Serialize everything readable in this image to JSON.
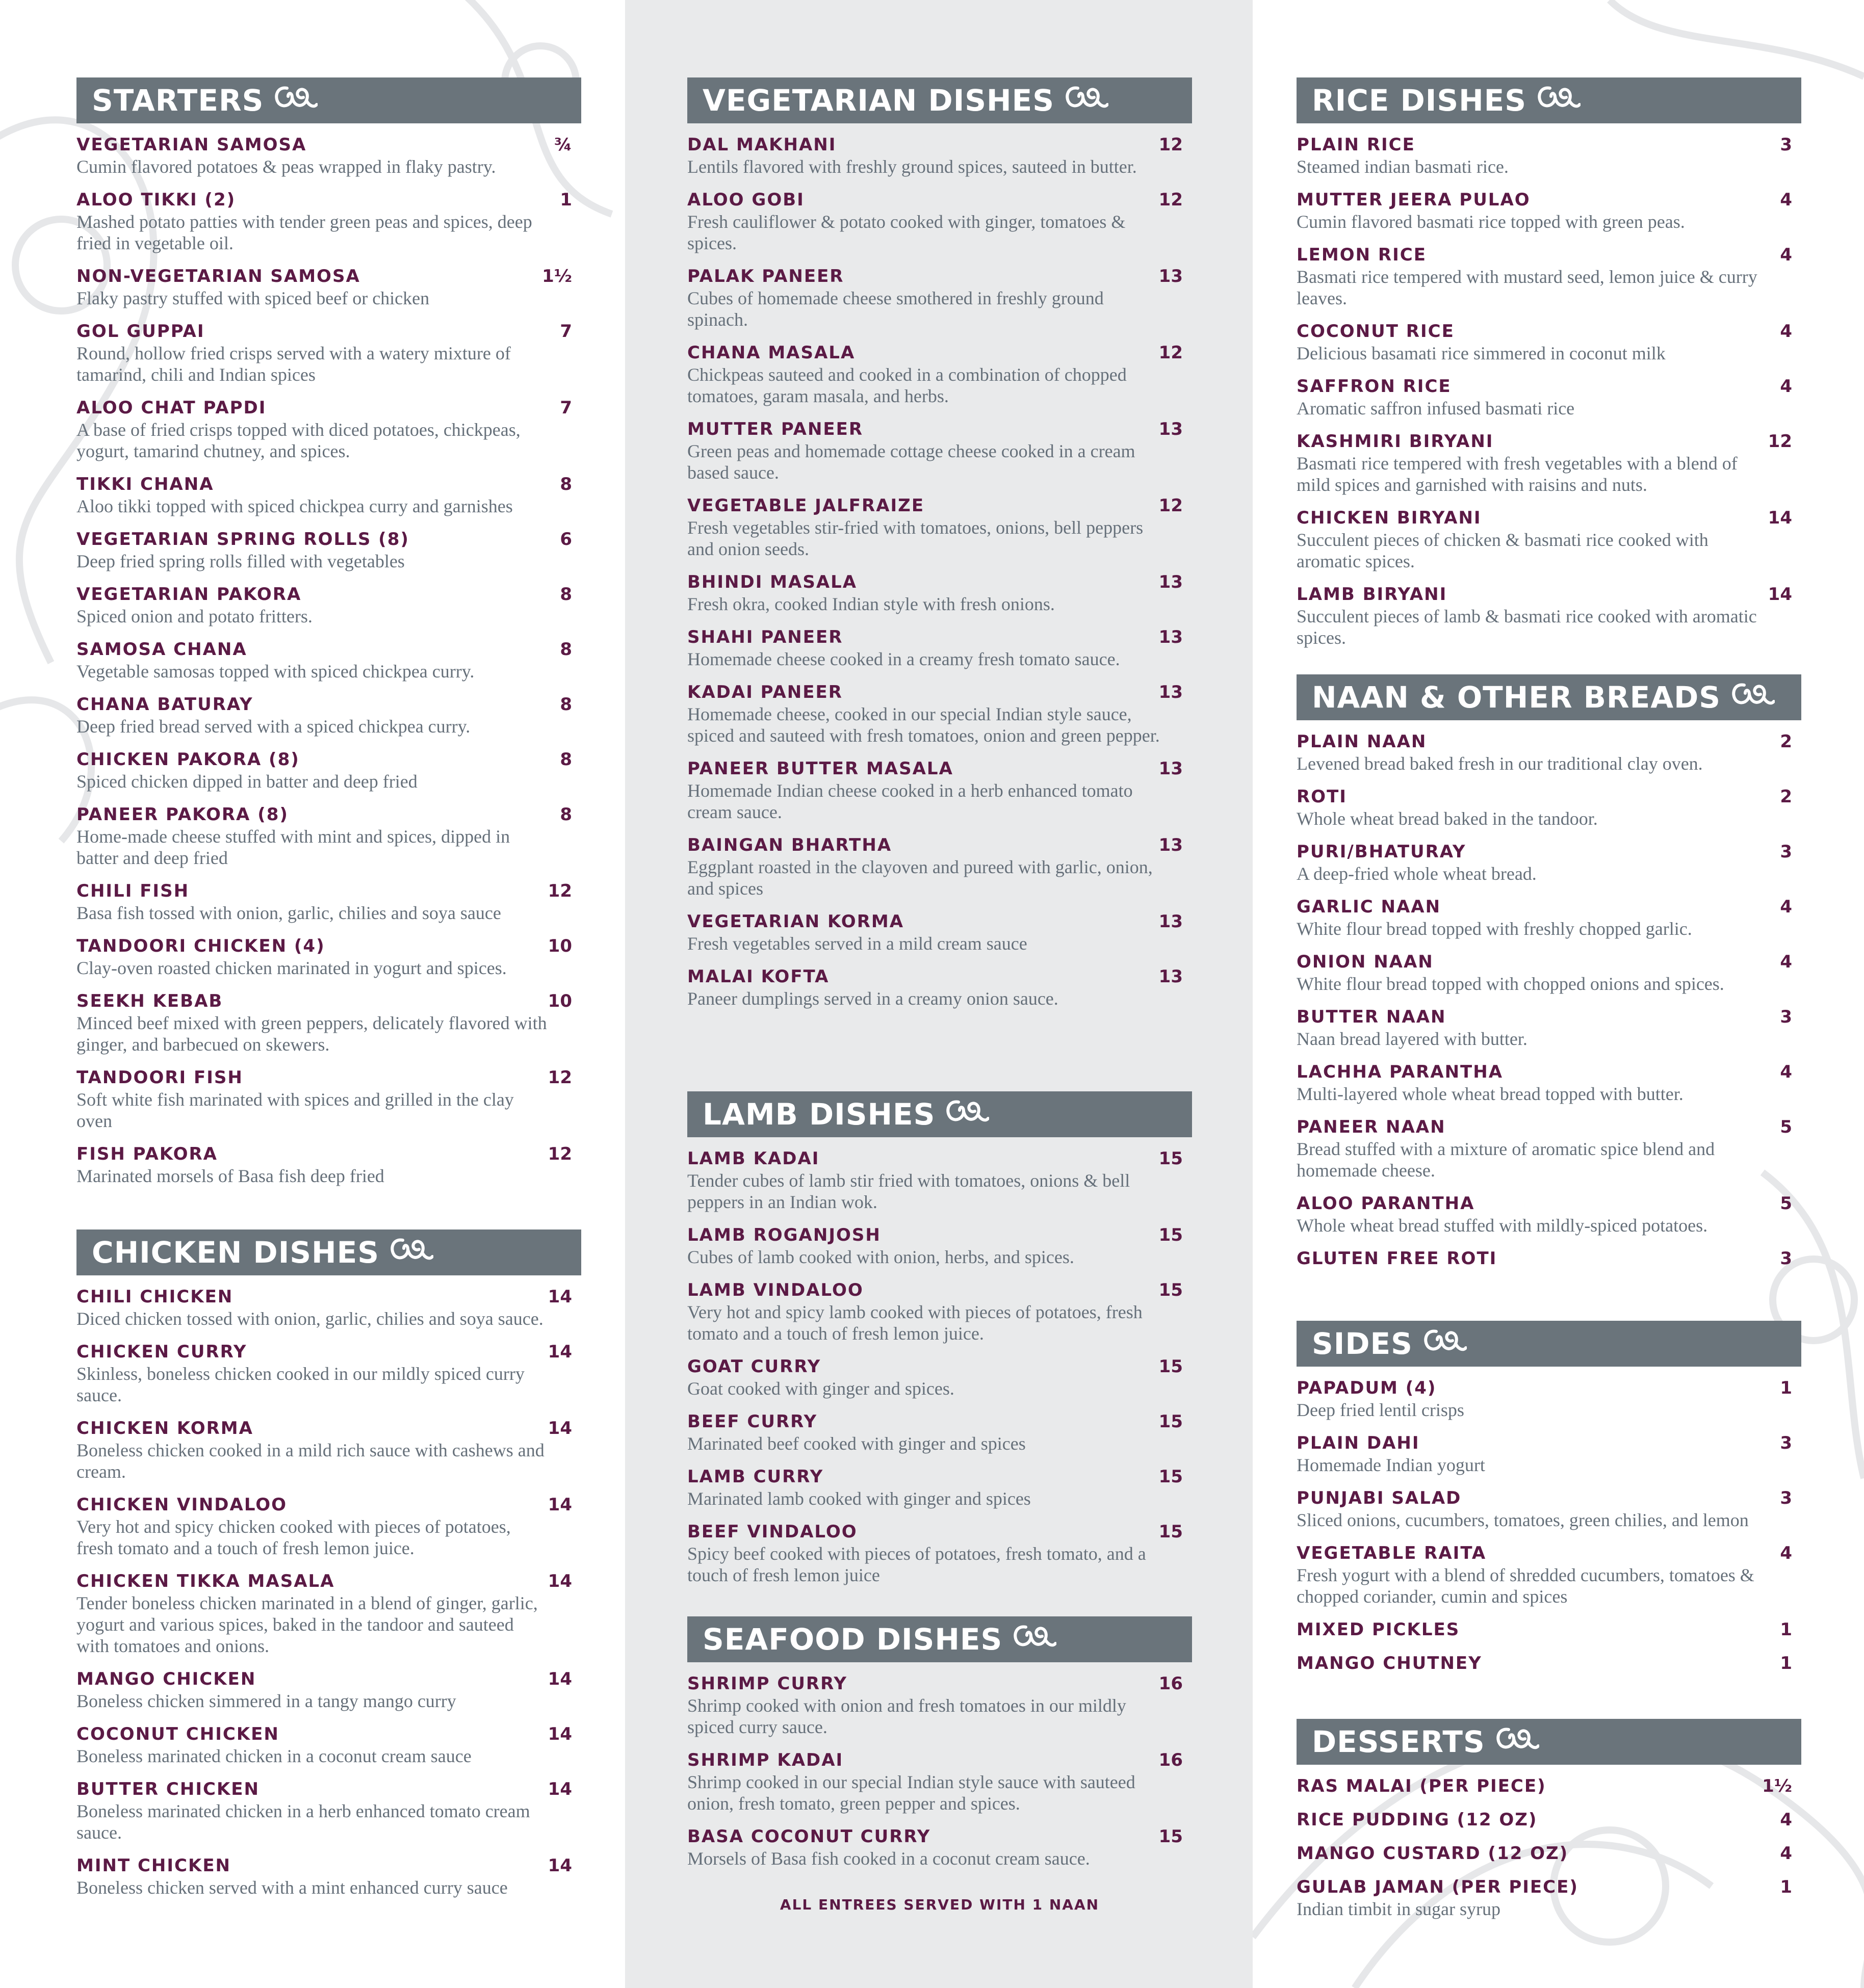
{
  "colors": {
    "header_bg": "#6a747b",
    "item_name": "#5b1a45",
    "description": "#66707a",
    "middle_bg": "#e9eaeb"
  },
  "header_icon": "paisley-flourish-icon",
  "columns": [
    [
      {
        "title": "STARTERS",
        "items": [
          {
            "name": "VEGETARIAN SAMOSA",
            "price": "¾",
            "desc": "Cumin flavored potatoes & peas wrapped in flaky pastry."
          },
          {
            "name": "ALOO TIKKI (2)",
            "price": "1",
            "desc": "Mashed potato patties with tender green peas and spices, deep fried in vegetable oil."
          },
          {
            "name": "NON-VEGETARIAN SAMOSA",
            "price": "1½",
            "desc": "Flaky pastry stuffed with spiced beef or chicken"
          },
          {
            "name": "GOL GUPPAI",
            "price": "7",
            "desc": "Round, hollow fried crisps served with a watery mixture of tamarind, chili and Indian spices"
          },
          {
            "name": "ALOO CHAT PAPDI",
            "price": "7",
            "desc": "A base of fried crisps topped with diced potatoes, chickpeas, yogurt, tamarind chutney, and spices."
          },
          {
            "name": "TIKKI CHANA",
            "price": "8",
            "desc": "Aloo tikki topped with spiced chickpea curry and garnishes"
          },
          {
            "name": "VEGETARIAN SPRING ROLLS (8)",
            "price": "6",
            "desc": "Deep fried spring rolls filled with vegetables"
          },
          {
            "name": "VEGETARIAN PAKORA",
            "price": "8",
            "desc": "Spiced onion and potato fritters."
          },
          {
            "name": "SAMOSA CHANA",
            "price": "8",
            "desc": "Vegetable samosas topped with spiced chickpea curry."
          },
          {
            "name": "CHANA BATURAY",
            "price": "8",
            "desc": "Deep fried bread served with a spiced chickpea curry."
          },
          {
            "name": "CHICKEN PAKORA (8)",
            "price": "8",
            "desc": "Spiced chicken dipped in batter and deep fried"
          },
          {
            "name": "PANEER PAKORA (8)",
            "price": "8",
            "desc": "Home-made cheese stuffed with mint and spices, dipped in batter and deep fried"
          },
          {
            "name": "CHILI FISH",
            "price": "12",
            "desc": "Basa fish tossed with onion, garlic, chilies and soya sauce"
          },
          {
            "name": "TANDOORI CHICKEN (4)",
            "price": "10",
            "desc": "Clay-oven roasted chicken marinated in yogurt and spices."
          },
          {
            "name": "SEEKH KEBAB",
            "price": "10",
            "desc": "Minced beef mixed with green peppers, delicately flavored with ginger, and barbecued on skewers."
          },
          {
            "name": "TANDOORI FISH",
            "price": "12",
            "desc": "Soft white fish marinated with spices and grilled in the clay oven"
          },
          {
            "name": "FISH PAKORA",
            "price": "12",
            "desc": "Marinated morsels of Basa fish deep fried"
          }
        ]
      },
      {
        "title": "CHICKEN DISHES",
        "items": [
          {
            "name": "CHILI CHICKEN",
            "price": "14",
            "desc": "Diced chicken tossed with onion, garlic, chilies and soya sauce."
          },
          {
            "name": "CHICKEN CURRY",
            "price": "14",
            "desc": "Skinless, boneless chicken cooked in our mildly spiced curry sauce."
          },
          {
            "name": "CHICKEN KORMA",
            "price": "14",
            "desc": "Boneless chicken cooked in a mild rich sauce with cashews and cream."
          },
          {
            "name": "CHICKEN VINDALOO",
            "price": "14",
            "desc": "Very hot and spicy chicken cooked with pieces of potatoes, fresh tomato and a touch of fresh lemon juice."
          },
          {
            "name": "CHICKEN TIKKA MASALA",
            "price": "14",
            "desc": "Tender boneless chicken marinated in a blend of ginger, garlic, yogurt and various spices, baked in the tandoor and sauteed with tomatoes and onions."
          },
          {
            "name": "MANGO CHICKEN",
            "price": "14",
            "desc": "Boneless chicken simmered in a tangy mango curry"
          },
          {
            "name": "COCONUT CHICKEN",
            "price": "14",
            "desc": "Boneless marinated chicken in a coconut cream sauce"
          },
          {
            "name": "BUTTER CHICKEN",
            "price": "14",
            "desc": "Boneless marinated chicken in a herb enhanced tomato cream sauce."
          },
          {
            "name": "MINT CHICKEN",
            "price": "14",
            "desc": "Boneless chicken served with a mint enhanced curry sauce"
          }
        ]
      }
    ],
    [
      {
        "title": "VEGETARIAN DISHES",
        "items": [
          {
            "name": "DAL MAKHANI",
            "price": "12",
            "desc": "Lentils flavored with freshly ground spices, sauteed in butter."
          },
          {
            "name": "ALOO GOBI",
            "price": "12",
            "desc": "Fresh cauliflower & potato cooked with ginger, tomatoes & spices."
          },
          {
            "name": "PALAK PANEER",
            "price": "13",
            "desc": "Cubes of homemade cheese smothered in freshly ground spinach."
          },
          {
            "name": "CHANA MASALA",
            "price": "12",
            "desc": "Chickpeas sauteed and cooked in a combination of chopped tomatoes, garam masala, and herbs."
          },
          {
            "name": "MUTTER PANEER",
            "price": "13",
            "desc": "Green peas and homemade cottage cheese cooked in a cream based sauce."
          },
          {
            "name": "VEGETABLE JALFRAIZE",
            "price": "12",
            "desc": "Fresh vegetables stir-fried with tomatoes, onions, bell peppers and onion seeds."
          },
          {
            "name": "BHINDI MASALA",
            "price": "13",
            "desc": "Fresh okra, cooked Indian style with fresh onions."
          },
          {
            "name": "SHAHI PANEER",
            "price": "13",
            "desc": "Homemade cheese cooked in a creamy fresh tomato sauce."
          },
          {
            "name": "KADAI PANEER",
            "price": "13",
            "desc": "Homemade cheese, cooked in our special Indian style sauce, spiced and sauteed with fresh tomatoes, onion and green pepper."
          },
          {
            "name": "PANEER BUTTER MASALA",
            "price": "13",
            "desc": "Homemade Indian cheese cooked in a herb enhanced tomato cream sauce."
          },
          {
            "name": "BAINGAN BHARTHA",
            "price": "13",
            "desc": "Eggplant roasted in the clayoven and pureed with garlic, onion, and spices"
          },
          {
            "name": "VEGETARIAN KORMA",
            "price": "13",
            "desc": "Fresh vegetables served in a mild cream sauce"
          },
          {
            "name": "MALAI KOFTA",
            "price": "13",
            "desc": "Paneer dumplings served in a creamy onion sauce."
          }
        ]
      },
      {
        "title": "LAMB DISHES",
        "items": [
          {
            "name": "LAMB KADAI",
            "price": "15",
            "desc": "Tender cubes of lamb stir fried with tomatoes, onions & bell peppers in an Indian wok."
          },
          {
            "name": "LAMB ROGANJOSH",
            "price": "15",
            "desc": "Cubes of lamb cooked with onion, herbs, and spices."
          },
          {
            "name": "LAMB VINDALOO",
            "price": "15",
            "desc": "Very hot and spicy lamb cooked with pieces of potatoes, fresh tomato and a touch of fresh lemon juice."
          },
          {
            "name": "GOAT CURRY",
            "price": "15",
            "desc": "Goat cooked with ginger and spices."
          },
          {
            "name": "BEEF CURRY",
            "price": "15",
            "desc": "Marinated beef cooked with ginger and spices"
          },
          {
            "name": "LAMB CURRY",
            "price": "15",
            "desc": "Marinated lamb cooked with ginger and spices"
          },
          {
            "name": "BEEF VINDALOO",
            "price": "15",
            "desc": "Spicy beef cooked with pieces of potatoes, fresh tomato, and a touch of fresh lemon juice"
          }
        ]
      },
      {
        "title": "SEAFOOD DISHES",
        "items": [
          {
            "name": "SHRIMP CURRY",
            "price": "16",
            "desc": "Shrimp cooked with onion and fresh tomatoes in our mildly spiced curry sauce."
          },
          {
            "name": "SHRIMP KADAI",
            "price": "16",
            "desc": "Shrimp cooked in our special Indian style sauce with sauteed onion, fresh tomato, green pepper and spices."
          },
          {
            "name": "BASA COCONUT CURRY",
            "price": "15",
            "desc": "Morsels of Basa fish cooked in a coconut cream sauce."
          }
        ]
      }
    ],
    [
      {
        "title": "RICE DISHES",
        "items": [
          {
            "name": "PLAIN RICE",
            "price": "3",
            "desc": "Steamed indian basmati rice."
          },
          {
            "name": "MUTTER JEERA PULAO",
            "price": "4",
            "desc": "Cumin flavored basmati rice topped with green peas."
          },
          {
            "name": "LEMON RICE",
            "price": "4",
            "desc": "Basmati rice tempered with mustard seed, lemon juice & curry leaves."
          },
          {
            "name": "COCONUT RICE",
            "price": "4",
            "desc": "Delicious basamati rice simmered in coconut milk"
          },
          {
            "name": "SAFFRON RICE",
            "price": "4",
            "desc": "Aromatic saffron infused basmati rice"
          },
          {
            "name": "KASHMIRI BIRYANI",
            "price": "12",
            "desc": "Basmati rice tempered with fresh vegetables with a blend of mild spices and garnished with raisins and nuts."
          },
          {
            "name": "CHICKEN BIRYANI",
            "price": "14",
            "desc": "Succulent pieces of chicken & basmati rice cooked with aromatic spices."
          },
          {
            "name": "LAMB BIRYANI",
            "price": "14",
            "desc": "Succulent pieces of lamb & basmati rice cooked with aromatic spices."
          }
        ]
      },
      {
        "title": "NAAN & OTHER BREADS",
        "items": [
          {
            "name": "PLAIN NAAN",
            "price": "2",
            "desc": "Levened bread baked fresh in our traditional clay oven."
          },
          {
            "name": "ROTI",
            "price": "2",
            "desc": "Whole wheat bread baked in the tandoor."
          },
          {
            "name": "PURI/BHATURAY",
            "price": "3",
            "desc": "A deep-fried whole wheat bread."
          },
          {
            "name": "GARLIC NAAN",
            "price": "4",
            "desc": "White flour bread topped with freshly chopped garlic."
          },
          {
            "name": "ONION NAAN",
            "price": "4",
            "desc": "White flour bread topped with chopped onions and spices."
          },
          {
            "name": "BUTTER NAAN",
            "price": "3",
            "desc": "Naan bread layered with butter."
          },
          {
            "name": "LACHHA PARANTHA",
            "price": "4",
            "desc": "Multi-layered whole wheat bread topped with butter."
          },
          {
            "name": "PANEER NAAN",
            "price": "5",
            "desc": "Bread stuffed with a mixture of aromatic spice blend and homemade cheese."
          },
          {
            "name": "ALOO PARANTHA",
            "price": "5",
            "desc": "Whole wheat bread stuffed with mildly-spiced potatoes."
          },
          {
            "name": "GLUTEN FREE ROTI",
            "price": "3",
            "desc": ""
          }
        ]
      },
      {
        "title": "SIDES",
        "items": [
          {
            "name": "PAPADUM (4)",
            "price": "1",
            "desc": "Deep fried lentil crisps"
          },
          {
            "name": "PLAIN DAHI",
            "price": "3",
            "desc": "Homemade Indian yogurt"
          },
          {
            "name": "PUNJABI SALAD",
            "price": "3",
            "desc": "Sliced onions, cucumbers, tomatoes, green chilies, and lemon"
          },
          {
            "name": "VEGETABLE RAITA",
            "price": "4",
            "desc": "Fresh yogurt with a blend of shredded cucumbers, tomatoes & chopped coriander, cumin and spices"
          },
          {
            "name": "MIXED PICKLES",
            "price": "1",
            "desc": ""
          },
          {
            "name": "MANGO CHUTNEY",
            "price": "1",
            "desc": ""
          }
        ]
      },
      {
        "title": "DESSERTS",
        "items": [
          {
            "name": "RAS MALAI (PER PIECE)",
            "price": "1½",
            "desc": ""
          },
          {
            "name": "RICE PUDDING (12 OZ)",
            "price": "4",
            "desc": ""
          },
          {
            "name": "MANGO CUSTARD (12 OZ)",
            "price": "4",
            "desc": ""
          },
          {
            "name": "GULAB JAMAN (PER PIECE)",
            "price": "1",
            "desc": "Indian timbit in sugar syrup"
          }
        ]
      }
    ]
  ],
  "footer": "ALL ENTREES SERVED WITH 1 NAAN"
}
